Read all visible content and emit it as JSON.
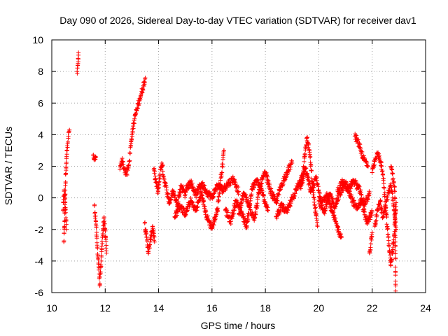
{
  "chart_data": {
    "type": "scatter",
    "title": "Day 090 of 2026, Sidereal Day-to-day VTEC variation (SDTVAR) for receiver dav1",
    "xlabel": "GPS time / hours",
    "ylabel": "SDTVAR / TECUs",
    "xlim": [
      10,
      24
    ],
    "ylim": [
      -6,
      10
    ],
    "xticks": [
      10,
      12,
      14,
      16,
      18,
      20,
      22,
      24
    ],
    "yticks": [
      -6,
      -4,
      -2,
      0,
      2,
      4,
      6,
      8,
      10
    ],
    "grid": true,
    "marker": "+",
    "color": "#ff0000",
    "series": [
      {
        "name": "dav1",
        "segments": [
          [
            [
              10.45,
              -2.8
            ],
            [
              10.48,
              -1.5
            ],
            [
              10.5,
              0.2
            ],
            [
              10.52,
              1.5
            ],
            [
              10.55,
              2.5
            ],
            [
              10.58,
              3.3
            ],
            [
              10.62,
              3.9
            ],
            [
              10.66,
              4.3
            ]
          ],
          [
            [
              10.42,
              -0.8
            ],
            [
              10.46,
              0.5
            ],
            [
              10.5,
              -0.3
            ],
            [
              10.55,
              -2.0
            ]
          ],
          [
            [
              10.95,
              8.0
            ],
            [
              10.98,
              8.5
            ],
            [
              11.0,
              9.2
            ]
          ],
          [
            [
              11.55,
              2.7
            ],
            [
              11.6,
              2.4
            ],
            [
              11.65,
              2.6
            ]
          ],
          [
            [
              11.6,
              -0.5
            ],
            [
              11.65,
              -1.5
            ],
            [
              11.7,
              -3.0
            ],
            [
              11.75,
              -4.2
            ],
            [
              11.8,
              -5.5
            ],
            [
              11.85,
              -4.0
            ],
            [
              11.9,
              -2.5
            ],
            [
              11.95,
              -1.3
            ],
            [
              12.0,
              -2.0
            ],
            [
              12.05,
              -3.5
            ]
          ],
          [
            [
              12.55,
              1.8
            ],
            [
              12.62,
              2.4
            ],
            [
              12.7,
              1.9
            ],
            [
              12.8,
              1.5
            ],
            [
              12.9,
              2.3
            ],
            [
              13.0,
              4.0
            ],
            [
              13.1,
              5.0
            ],
            [
              13.2,
              5.7
            ],
            [
              13.3,
              6.3
            ],
            [
              13.4,
              6.9
            ],
            [
              13.5,
              7.6
            ]
          ],
          [
            [
              13.48,
              -1.6
            ],
            [
              13.55,
              -2.5
            ],
            [
              13.62,
              -3.5
            ],
            [
              13.7,
              -2.6
            ],
            [
              13.78,
              -1.8
            ],
            [
              13.85,
              -2.8
            ]
          ],
          [
            [
              13.82,
              1.8
            ],
            [
              13.9,
              1.0
            ],
            [
              13.98,
              0.3
            ],
            [
              14.05,
              1.5
            ],
            [
              14.12,
              2.2
            ],
            [
              14.2,
              1.2
            ],
            [
              14.3,
              0.5
            ],
            [
              14.4,
              -0.3
            ],
            [
              14.55,
              0.4
            ],
            [
              14.7,
              -0.4
            ],
            [
              14.85,
              0.8
            ],
            [
              15.0,
              0.2
            ]
          ],
          [
            [
              14.6,
              -1.2
            ],
            [
              14.8,
              -0.5
            ],
            [
              15.0,
              -1.0
            ],
            [
              15.2,
              -0.2
            ],
            [
              15.4,
              -0.8
            ],
            [
              15.6,
              0.3
            ],
            [
              15.8,
              -1.2
            ],
            [
              16.0,
              -1.9
            ],
            [
              16.2,
              -0.8
            ],
            [
              16.35,
              1.5
            ],
            [
              16.45,
              3.0
            ]
          ],
          [
            [
              15.0,
              0.5
            ],
            [
              15.2,
              1.0
            ],
            [
              15.4,
              0.2
            ],
            [
              15.6,
              0.9
            ],
            [
              15.8,
              0.4
            ],
            [
              16.0,
              0.0
            ],
            [
              16.2,
              0.8
            ],
            [
              16.4,
              0.5
            ],
            [
              16.6,
              0.9
            ],
            [
              16.8,
              1.2
            ],
            [
              17.0,
              0.4
            ]
          ],
          [
            [
              16.5,
              -0.8
            ],
            [
              16.7,
              -1.5
            ],
            [
              16.9,
              -0.2
            ],
            [
              17.1,
              -0.9
            ],
            [
              17.3,
              -1.8
            ],
            [
              17.5,
              0.6
            ],
            [
              17.7,
              1.1
            ],
            [
              17.9,
              0.2
            ],
            [
              18.1,
              -0.8
            ]
          ],
          [
            [
              17.0,
              -1.0
            ],
            [
              17.2,
              0.3
            ],
            [
              17.4,
              -0.6
            ],
            [
              17.6,
              -1.3
            ],
            [
              17.8,
              0.8
            ],
            [
              18.0,
              1.6
            ],
            [
              18.2,
              0.4
            ],
            [
              18.4,
              -0.3
            ],
            [
              18.6,
              0.8
            ],
            [
              18.8,
              1.6
            ],
            [
              19.0,
              2.2
            ]
          ],
          [
            [
              18.4,
              -1.2
            ],
            [
              18.6,
              -0.5
            ],
            [
              18.8,
              -0.9
            ],
            [
              19.0,
              -0.1
            ],
            [
              19.2,
              0.7
            ],
            [
              19.4,
              1.5
            ],
            [
              19.55,
              3.8
            ],
            [
              19.65,
              3.0
            ],
            [
              19.75,
              1.0
            ],
            [
              19.85,
              -0.5
            ],
            [
              19.95,
              -1.8
            ]
          ],
          [
            [
              19.3,
              0.6
            ],
            [
              19.5,
              1.9
            ],
            [
              19.7,
              0.4
            ],
            [
              19.9,
              1.2
            ],
            [
              20.1,
              -0.4
            ],
            [
              20.3,
              0.3
            ],
            [
              20.5,
              -0.9
            ],
            [
              20.7,
              -1.9
            ],
            [
              20.85,
              -2.5
            ]
          ],
          [
            [
              20.0,
              -0.2
            ],
            [
              20.2,
              -0.9
            ],
            [
              20.4,
              0.2
            ],
            [
              20.6,
              -0.5
            ],
            [
              20.8,
              0.3
            ],
            [
              21.0,
              0.9
            ],
            [
              21.2,
              0.1
            ],
            [
              21.4,
              -0.7
            ],
            [
              21.6,
              -0.2
            ],
            [
              21.8,
              -1.6
            ],
            [
              22.0,
              -0.9
            ]
          ],
          [
            [
              20.7,
              0.5
            ],
            [
              20.9,
              1.0
            ],
            [
              21.1,
              0.5
            ],
            [
              21.3,
              1.1
            ],
            [
              21.5,
              0.6
            ],
            [
              21.7,
              -0.4
            ],
            [
              21.9,
              0.3
            ]
          ],
          [
            [
              21.35,
              3.9
            ],
            [
              21.45,
              3.6
            ],
            [
              21.55,
              3.2
            ],
            [
              21.65,
              2.6
            ],
            [
              21.75,
              2.3
            ],
            [
              21.85,
              2.0
            ]
          ],
          [
            [
              22.0,
              1.6
            ],
            [
              22.1,
              2.3
            ],
            [
              22.2,
              2.8
            ],
            [
              22.3,
              2.4
            ],
            [
              22.4,
              1.5
            ],
            [
              22.5,
              -0.5
            ],
            [
              22.6,
              -2.5
            ],
            [
              22.7,
              -4.3
            ],
            [
              22.8,
              -2.8
            ],
            [
              22.9,
              -0.3
            ]
          ],
          [
            [
              22.1,
              -1.8
            ],
            [
              22.2,
              -0.8
            ],
            [
              22.3,
              -0.2
            ],
            [
              22.4,
              -1.2
            ],
            [
              22.5,
              -0.6
            ],
            [
              22.6,
              0.3
            ],
            [
              22.7,
              0.8
            ],
            [
              22.8,
              -0.5
            ],
            [
              22.9,
              -2.0
            ]
          ],
          [
            [
              22.7,
              2.0
            ],
            [
              22.78,
              1.2
            ],
            [
              22.85,
              0.4
            ],
            [
              22.88,
              -5.9
            ]
          ],
          [
            [
              21.9,
              -3.5
            ],
            [
              22.0,
              -2.2
            ]
          ]
        ]
      }
    ]
  }
}
